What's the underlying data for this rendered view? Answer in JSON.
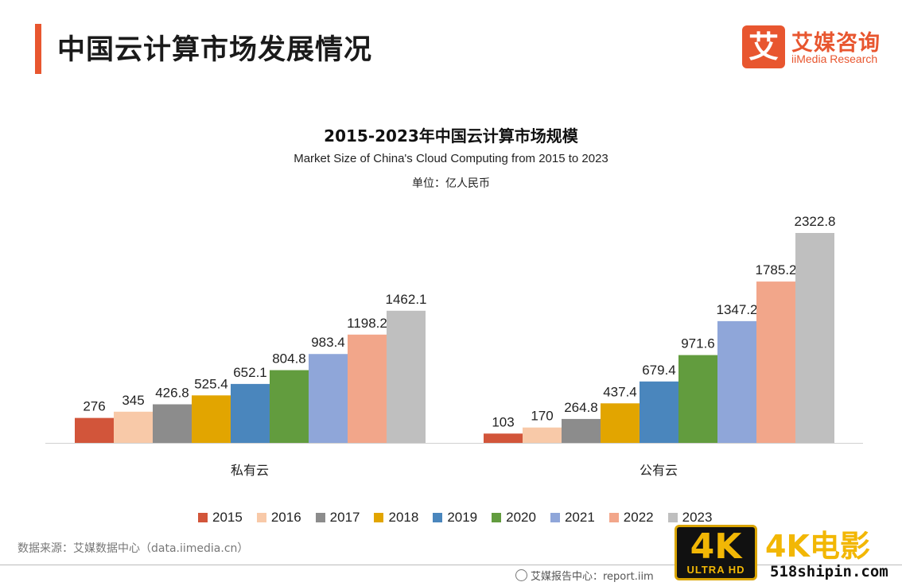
{
  "header": {
    "title": "中国云计算市场发展情况",
    "accent_color": "#e8562f"
  },
  "logo": {
    "glyph": "艾",
    "name_cn": "艾媒咨询",
    "name_en": "iiMedia Research"
  },
  "chart_data": {
    "type": "bar",
    "title": "2015-2023年中国云计算市场规模",
    "subtitle": "Market Size of China's Cloud Computing from 2015 to 2023",
    "unit": "单位：亿人民币",
    "categories": [
      "私有云",
      "公有云"
    ],
    "series": [
      {
        "name": "2015",
        "color": "#d2553a",
        "values": [
          276,
          103
        ]
      },
      {
        "name": "2016",
        "color": "#f8c9a8",
        "values": [
          345,
          170
        ]
      },
      {
        "name": "2017",
        "color": "#8c8c8c",
        "values": [
          426.8,
          264.8
        ]
      },
      {
        "name": "2018",
        "color": "#e2a500",
        "values": [
          525.4,
          437.4
        ]
      },
      {
        "name": "2019",
        "color": "#4a86bd",
        "values": [
          652.1,
          679.4
        ]
      },
      {
        "name": "2020",
        "color": "#629c3e",
        "values": [
          804.8,
          971.6
        ]
      },
      {
        "name": "2021",
        "color": "#8fa6d9",
        "values": [
          983.4,
          1347.2
        ]
      },
      {
        "name": "2022",
        "color": "#f2a68a",
        "values": [
          1198.2,
          1785.2
        ]
      },
      {
        "name": "2023",
        "color": "#bfbfbf",
        "values": [
          1462.1,
          2322.8
        ]
      }
    ],
    "ylim": [
      0,
      2322.8
    ],
    "grid": false,
    "legend_position": "bottom"
  },
  "source": "数据来源：艾媒数据中心（data.iimedia.cn）",
  "footer": {
    "text": "艾媒报告中心：report.iim"
  },
  "watermark": {
    "badge_main": "4K",
    "badge_sub": "ULTRA HD",
    "title": "4K电影",
    "site": "518shipin.com"
  }
}
